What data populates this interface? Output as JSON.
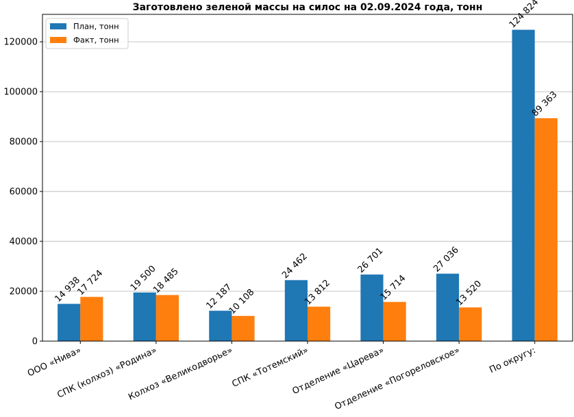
{
  "chart_data": {
    "type": "bar",
    "title": "Заготовлено зеленой массы на силос на 02.09.2024 года, тонн",
    "xlabel": "",
    "ylabel": "",
    "categories": [
      "ООО «Нива»",
      "СПК (колхоз) «Родина»",
      "Колхоз «Великодворье»",
      "СПК «Тотемский»",
      "Отделение «Царева»",
      "Отделение «Погореловское»",
      "По округу:"
    ],
    "series": [
      {
        "name": "План, тонн",
        "color": "#1f77b4",
        "values": [
          14938,
          19500,
          12187,
          24462,
          26701,
          27036,
          124824
        ],
        "labels": [
          "14 938",
          "19 500",
          "12 187",
          "24 462",
          "26 701",
          "27 036",
          "124 824"
        ]
      },
      {
        "name": "Факт, тонн",
        "color": "#ff7f0e",
        "values": [
          17724,
          18485,
          10108,
          13812,
          15714,
          13520,
          89363
        ],
        "labels": [
          "17 724",
          "18 485",
          "10 108",
          "13 812",
          "15 714",
          "13 520",
          "89 363"
        ]
      }
    ],
    "ylim": [
      0,
      131000
    ],
    "yticks": [
      0,
      20000,
      40000,
      60000,
      80000,
      100000,
      120000
    ],
    "ytick_labels": [
      "0",
      "20000",
      "40000",
      "60000",
      "80000",
      "100000",
      "120000"
    ],
    "grid": "y",
    "legend_position": "top-left",
    "grid_color": "#b0b0b0"
  }
}
